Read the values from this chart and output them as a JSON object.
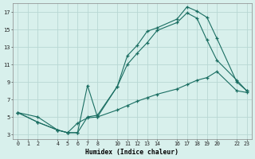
{
  "xlabel": "Humidex (Indice chaleur)",
  "bg_color": "#d8f0ec",
  "grid_color": "#b8d8d4",
  "line_color": "#1a6e62",
  "xlim": [
    -0.5,
    23.5
  ],
  "ylim": [
    2.5,
    18.0
  ],
  "xticks": [
    0,
    1,
    2,
    4,
    5,
    6,
    7,
    8,
    10,
    11,
    12,
    13,
    14,
    16,
    17,
    18,
    19,
    20,
    22,
    23
  ],
  "yticks": [
    3,
    5,
    7,
    9,
    11,
    13,
    15,
    17
  ],
  "line1_x": [
    0,
    2,
    4,
    5,
    6,
    7,
    8,
    10,
    11,
    12,
    13,
    14,
    16,
    17,
    18,
    19,
    20,
    22,
    23
  ],
  "line1_y": [
    5.5,
    5.0,
    3.5,
    3.2,
    3.2,
    5.0,
    5.2,
    8.5,
    12.0,
    13.2,
    14.8,
    15.2,
    16.2,
    17.6,
    17.1,
    16.4,
    14.0,
    9.0,
    8.0
  ],
  "line2_x": [
    0,
    2,
    4,
    5,
    6,
    7,
    8,
    10,
    11,
    12,
    13,
    14,
    16,
    17,
    18,
    19,
    20,
    22,
    23
  ],
  "line2_y": [
    5.5,
    4.4,
    3.5,
    3.2,
    3.2,
    8.6,
    5.0,
    8.5,
    11.0,
    12.3,
    13.5,
    14.9,
    15.8,
    16.9,
    16.3,
    13.8,
    11.5,
    9.2,
    8.0
  ],
  "line3_x": [
    0,
    2,
    4,
    5,
    6,
    7,
    8,
    10,
    11,
    12,
    13,
    14,
    16,
    17,
    18,
    19,
    20,
    22,
    23
  ],
  "line3_y": [
    5.5,
    4.4,
    3.5,
    3.2,
    4.3,
    4.9,
    5.0,
    5.8,
    6.3,
    6.8,
    7.2,
    7.6,
    8.2,
    8.7,
    9.2,
    9.5,
    10.2,
    8.0,
    7.8
  ],
  "figw": 3.2,
  "figh": 2.0,
  "dpi": 100
}
